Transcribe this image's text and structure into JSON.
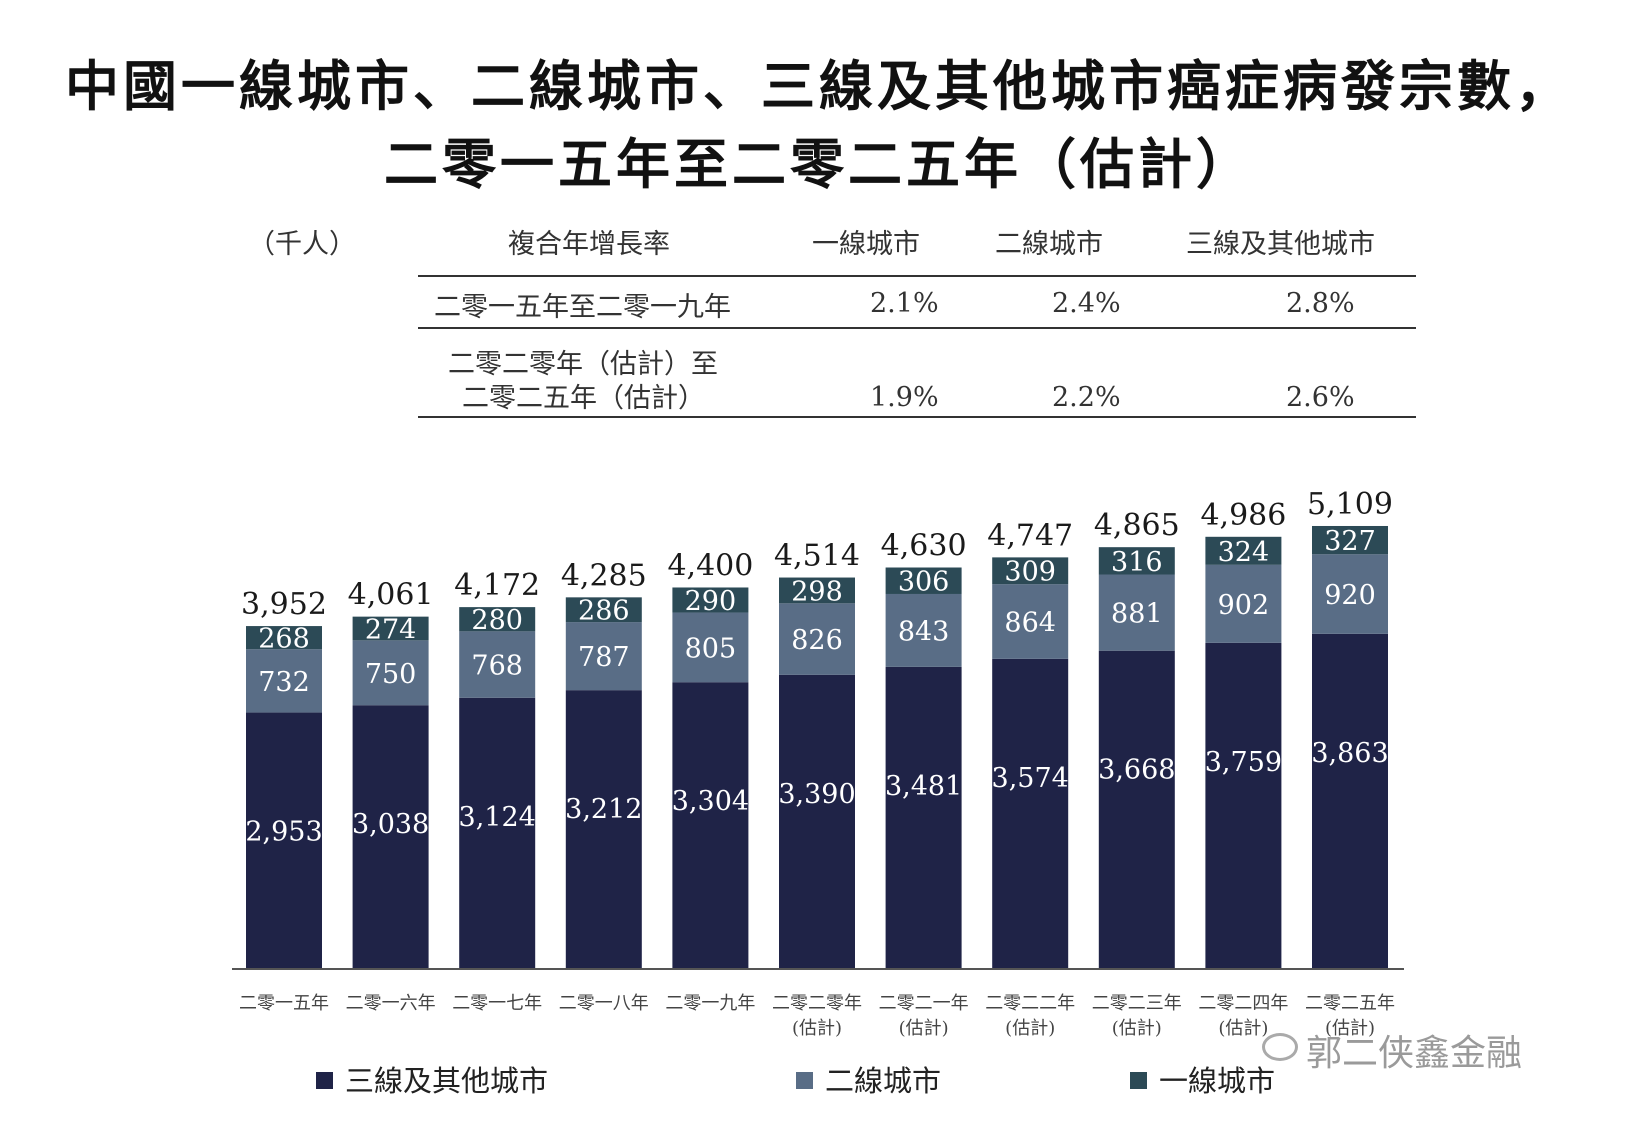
{
  "title_line1": "中國一線城市、二線城市、三線及其他城市癌症病發宗數，",
  "title_line2": "二零一五年至二零二五年（估計）",
  "unit": "（千人）",
  "cagr_table": {
    "header": [
      "複合年增長率",
      "一線城市",
      "二線城市",
      "三線及其他城市"
    ],
    "rows": [
      {
        "period": [
          "二零一五年至二零一九年"
        ],
        "tier1": "2.1%",
        "tier2": "2.4%",
        "tier3": "2.8%"
      },
      {
        "period": [
          "二零二零年（估計）至",
          "二零二五年（估計）"
        ],
        "tier1": "1.9%",
        "tier2": "2.2%",
        "tier3": "2.6%"
      }
    ]
  },
  "chart_data": {
    "type": "bar",
    "stacked": true,
    "categories": [
      [
        "二零一五年"
      ],
      [
        "二零一六年"
      ],
      [
        "二零一七年"
      ],
      [
        "二零一八年"
      ],
      [
        "二零一九年"
      ],
      [
        "二零二零年",
        "(估計)"
      ],
      [
        "二零二一年",
        "(估計)"
      ],
      [
        "二零二二年",
        "(估計)"
      ],
      [
        "二零二三年",
        "(估計)"
      ],
      [
        "二零二四年",
        "(估計)"
      ],
      [
        "二零二五年",
        "(估計)"
      ]
    ],
    "series": [
      {
        "name": "三線及其他城市",
        "color": "#1f2347",
        "values": [
          2953,
          3038,
          3124,
          3212,
          3304,
          3390,
          3481,
          3574,
          3668,
          3759,
          3863
        ],
        "labels": [
          "2,953",
          "3,038",
          "3,124",
          "3,212",
          "3,304",
          "3,390",
          "3,481",
          "3,574",
          "3,668",
          "3,759",
          "3,863"
        ]
      },
      {
        "name": "二線城市",
        "color": "#596d86",
        "values": [
          732,
          750,
          768,
          787,
          805,
          826,
          843,
          864,
          881,
          902,
          920
        ],
        "labels": [
          "732",
          "750",
          "768",
          "787",
          "805",
          "826",
          "843",
          "864",
          "881",
          "902",
          "920"
        ]
      },
      {
        "name": "一線城市",
        "color": "#2c4a56",
        "values": [
          268,
          274,
          280,
          286,
          290,
          298,
          306,
          309,
          316,
          324,
          327
        ],
        "labels": [
          "268",
          "274",
          "280",
          "286",
          "290",
          "298",
          "306",
          "309",
          "316",
          "324",
          "327"
        ]
      }
    ],
    "totals": [
      3952,
      4061,
      4172,
      4285,
      4400,
      4514,
      4630,
      4747,
      4865,
      4986,
      5109
    ],
    "total_labels": [
      "3,952",
      "4,061",
      "4,172",
      "4,285",
      "4,400",
      "4,514",
      "4,630",
      "4,747",
      "4,865",
      "4,986",
      "5,109"
    ],
    "legend": [
      "三線及其他城市",
      "二線城市",
      "一線城市"
    ],
    "ylim": [
      0,
      6000
    ]
  },
  "watermark": "郭二侠鑫金融"
}
